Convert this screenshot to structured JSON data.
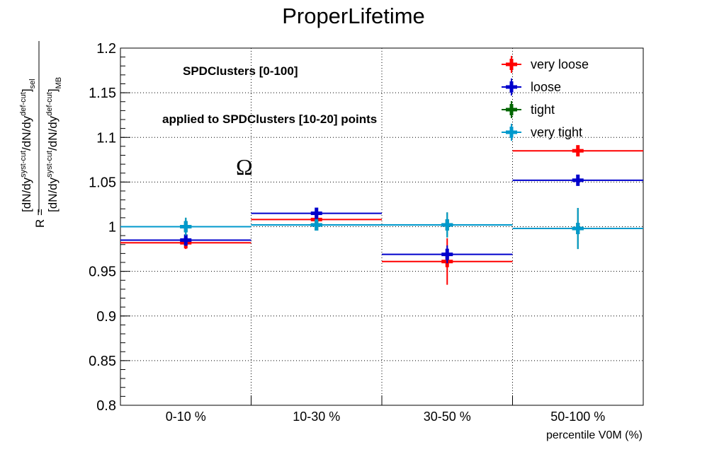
{
  "chart_data": {
    "type": "scatter",
    "title": "ProperLifetime",
    "xlabel": "percentile V0M (%)",
    "ylabel": {
      "prefix": "R = ",
      "numerator": "[dN/dy",
      "numerator_sup1": "syst-cut",
      "numerator_mid": "/dN/dy",
      "numerator_sup2": "def-cut",
      "numerator_close": "]",
      "numerator_sub": "sel",
      "denominator": "[dN/dy",
      "denominator_sup1": "syst-cut",
      "denominator_mid": "/dN/dy",
      "denominator_sup2": "def-cut",
      "denominator_close": "]",
      "denominator_sub": "MB"
    },
    "categories": [
      "0-10 %",
      "10-30 %",
      "30-50 %",
      "50-100 %"
    ],
    "ylim": [
      0.8,
      1.2
    ],
    "yticks": [
      "0.8",
      "0.85",
      "0.9",
      "0.95",
      "1",
      "1.05",
      "1.1",
      "1.15",
      "1.2"
    ],
    "grid": true,
    "legend_position": "top-right",
    "annotations": [
      "SPDClusters [0-100]",
      "applied to SPDClusters [10-20] points",
      "Ω"
    ],
    "series": [
      {
        "name": "very loose",
        "color": "#ff0000",
        "values": [
          0.982,
          1.008,
          0.961,
          1.085
        ],
        "errors": [
          0.007,
          0.004,
          0.026,
          0.006
        ]
      },
      {
        "name": "loose",
        "color": "#0000cc",
        "values": [
          0.985,
          1.015,
          0.969,
          1.052
        ],
        "errors": [
          0.006,
          0.004,
          0.01,
          0.006
        ]
      },
      {
        "name": "tight",
        "color": "#006600",
        "values": [
          1.0,
          1.002,
          1.002,
          0.998
        ],
        "errors": [
          0.01,
          0.005,
          0.014,
          0.023
        ]
      },
      {
        "name": "very tight",
        "color": "#0099cc",
        "values": [
          1.0,
          1.002,
          1.002,
          0.998
        ],
        "errors": [
          0.01,
          0.005,
          0.014,
          0.023
        ]
      }
    ]
  }
}
